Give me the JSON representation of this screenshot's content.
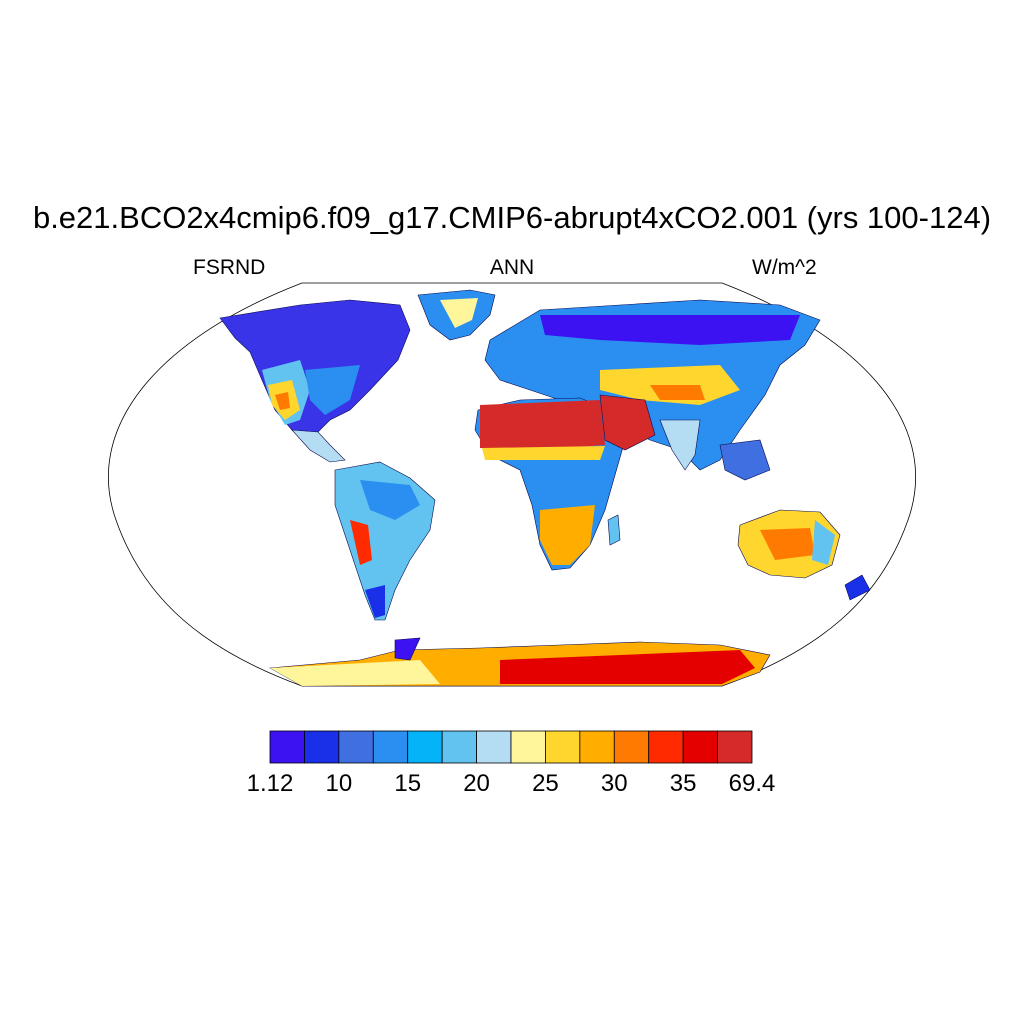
{
  "title": "b.e21.BCO2x4cmip6.f09_g17.CMIP6-abrupt4xCO2.001 (yrs 100-124)",
  "subtitle": {
    "left": "FSRND",
    "center": "ANN",
    "right": "W/m^2"
  },
  "colorbar": {
    "colors": [
      "#3c12f2",
      "#1a2fe8",
      "#3f6fe0",
      "#2a8ff0",
      "#05b4f8",
      "#62c3f0",
      "#b4dcf2",
      "#fff59a",
      "#ffd62e",
      "#ffae00",
      "#ff7a00",
      "#ff2a00",
      "#e50000",
      "#d42a2a"
    ],
    "tick_labels": [
      "1.12",
      "10",
      "15",
      "20",
      "25",
      "30",
      "35",
      "69.4"
    ]
  }
}
